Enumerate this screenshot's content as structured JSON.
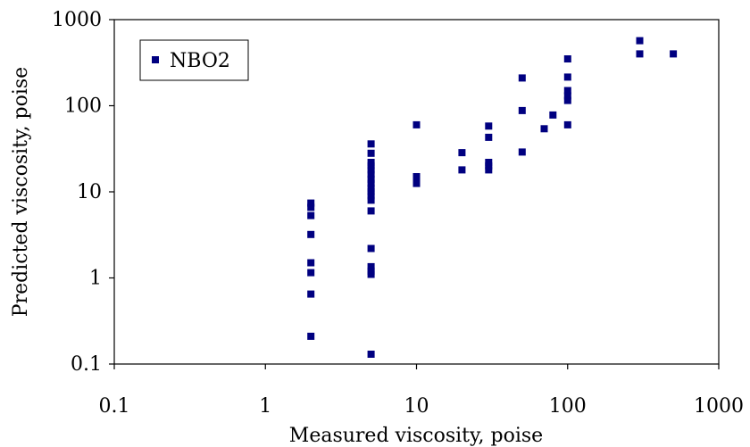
{
  "chart_data": {
    "type": "scatter",
    "x_scale": "log",
    "y_scale": "log",
    "xlim": [
      0.1,
      1000
    ],
    "ylim": [
      0.1,
      1000
    ],
    "xlabel": "Measured viscosity, poise",
    "ylabel": "Predicted viscosity, poise",
    "x_tick_labels": [
      "0.1",
      "1",
      "10",
      "100",
      "1000"
    ],
    "y_tick_labels": [
      "0.1",
      "1",
      "10",
      "100",
      "1000"
    ],
    "grid": false,
    "legend": {
      "position": "top-left",
      "entries": [
        "NBO2"
      ]
    },
    "series": [
      {
        "name": "NBO2",
        "color": "#000080",
        "marker": "square",
        "points": [
          [
            2,
            7.4
          ],
          [
            2,
            6.6
          ],
          [
            2,
            5.3
          ],
          [
            2,
            3.2
          ],
          [
            2,
            1.5
          ],
          [
            2,
            1.15
          ],
          [
            2,
            0.65
          ],
          [
            2,
            0.21
          ],
          [
            5,
            36
          ],
          [
            5,
            28
          ],
          [
            5,
            22
          ],
          [
            5,
            20
          ],
          [
            5,
            18
          ],
          [
            5,
            16
          ],
          [
            5,
            14
          ],
          [
            5,
            12.5
          ],
          [
            5,
            11
          ],
          [
            5,
            10
          ],
          [
            5,
            9
          ],
          [
            5,
            8
          ],
          [
            5,
            6
          ],
          [
            5,
            2.2
          ],
          [
            5,
            1.35
          ],
          [
            5,
            1.2
          ],
          [
            5,
            1.1
          ],
          [
            5,
            0.13
          ],
          [
            10,
            60
          ],
          [
            10,
            15
          ],
          [
            10,
            13
          ],
          [
            10,
            12.5
          ],
          [
            20,
            28.5
          ],
          [
            20,
            18
          ],
          [
            30,
            58
          ],
          [
            30,
            43
          ],
          [
            30,
            22
          ],
          [
            30,
            20
          ],
          [
            30,
            18
          ],
          [
            50,
            210
          ],
          [
            50,
            88
          ],
          [
            50,
            29
          ],
          [
            70,
            54
          ],
          [
            80,
            78
          ],
          [
            100,
            350
          ],
          [
            100,
            215
          ],
          [
            100,
            150
          ],
          [
            100,
            130
          ],
          [
            100,
            115
          ],
          [
            100,
            60
          ],
          [
            300,
            570
          ],
          [
            300,
            400
          ],
          [
            500,
            400
          ]
        ]
      }
    ]
  }
}
